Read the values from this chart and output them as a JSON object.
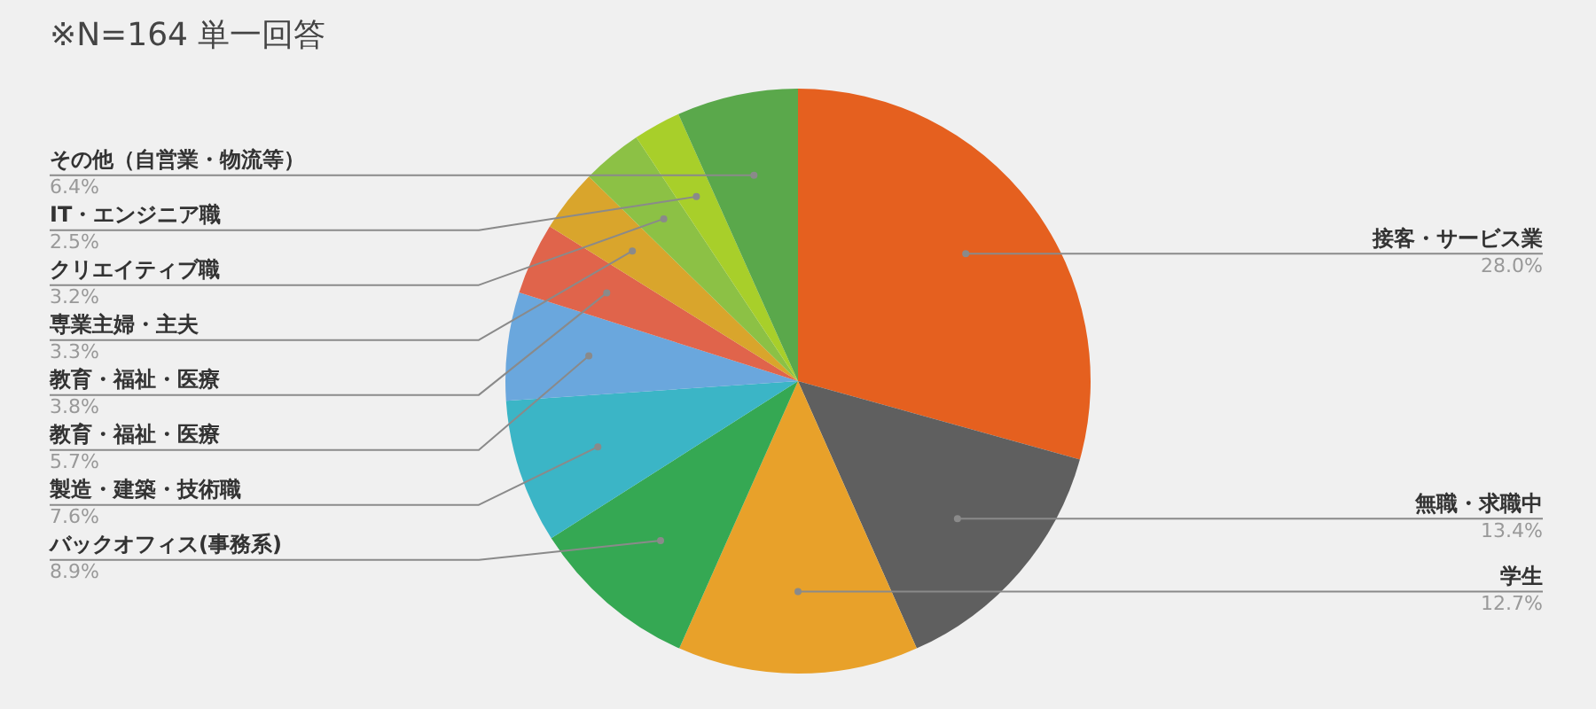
{
  "chart_data": {
    "type": "pie",
    "title": "※N=164 単一回答",
    "categories": [
      "接客・サービス業",
      "無職・求職中",
      "学生",
      "バックオフィス(事務系)",
      "製造・建築・技術職",
      "教育・福祉・医療",
      "教育・福祉・医療",
      "専業主婦・主夫",
      "クリエイティブ職",
      "IT・エンジニア職",
      "その他（自営業・物流等）"
    ],
    "values": [
      28.0,
      13.4,
      12.7,
      8.9,
      7.6,
      5.7,
      3.8,
      3.3,
      3.2,
      2.5,
      6.4
    ],
    "value_labels": [
      "28.0%",
      "13.4%",
      "12.7%",
      "8.9%",
      "7.6%",
      "5.7%",
      "3.8%",
      "3.3%",
      "3.2%",
      "2.5%",
      "6.4%"
    ],
    "colors": [
      "#e5601f",
      "#5f5f5f",
      "#e8a12a",
      "#35a853",
      "#3bb5c6",
      "#6aa7dd",
      "#e0644b",
      "#d9a52c",
      "#8cc145",
      "#a8cf2a",
      "#5aa84b"
    ]
  }
}
